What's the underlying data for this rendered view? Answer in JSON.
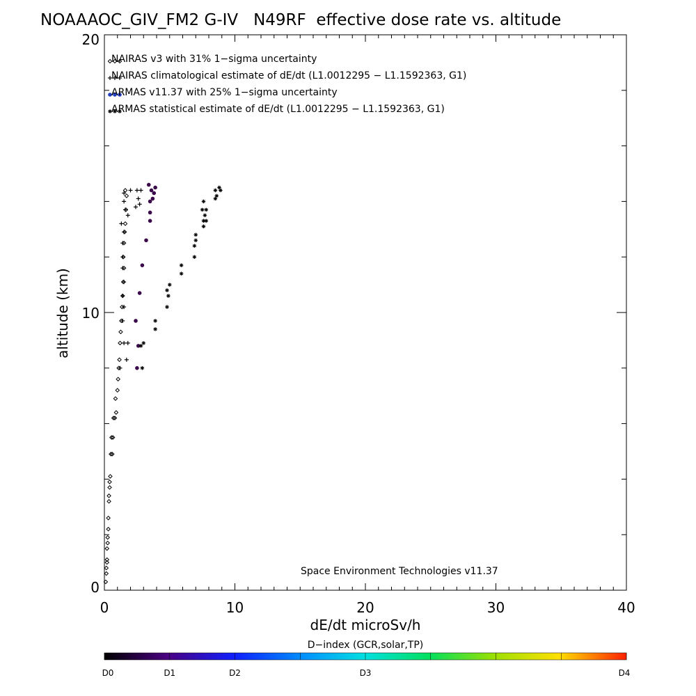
{
  "chart_data": {
    "type": "scatter",
    "title": "NOAAAOC_GIV_FM2 G-IV   N49RF  effective dose rate vs. altitude",
    "xlabel": "dE/dt microSv/h",
    "ylabel": "altitude (km)",
    "xlim": [
      0,
      40
    ],
    "ylim": [
      0,
      20
    ],
    "x_ticks": [
      "0",
      "10",
      "20",
      "30",
      "40"
    ],
    "y_ticks": [
      "0",
      "10",
      "20"
    ],
    "legend_placement": "top-left",
    "credit": "Space Environment Technologies v11.37",
    "colorbar": {
      "title": "D−index (GCR,solar,TP)",
      "labels": [
        "D0",
        "D1",
        "D2",
        "D3",
        "D4"
      ],
      "label_positions": [
        0,
        0.125,
        0.25,
        0.5,
        1.0
      ]
    },
    "series": [
      {
        "name": "NAIRAS v3 with 31% 1−sigma uncertainty",
        "marker": "diamond",
        "color": "#000000",
        "points": [
          [
            0.1,
            0.3
          ],
          [
            0.15,
            0.6
          ],
          [
            0.15,
            0.8
          ],
          [
            0.2,
            1.0
          ],
          [
            0.2,
            1.1
          ],
          [
            0.2,
            1.5
          ],
          [
            0.25,
            1.7
          ],
          [
            0.25,
            1.9
          ],
          [
            0.3,
            2.2
          ],
          [
            0.3,
            2.6
          ],
          [
            0.35,
            3.2
          ],
          [
            0.35,
            3.4
          ],
          [
            0.4,
            3.7
          ],
          [
            0.4,
            3.9
          ],
          [
            0.45,
            4.1
          ],
          [
            0.5,
            4.9
          ],
          [
            0.6,
            4.9
          ],
          [
            0.55,
            5.5
          ],
          [
            0.65,
            5.5
          ],
          [
            0.7,
            6.2
          ],
          [
            0.8,
            6.2
          ],
          [
            0.9,
            6.4
          ],
          [
            0.85,
            6.9
          ],
          [
            1.0,
            7.2
          ],
          [
            1.05,
            7.6
          ],
          [
            1.1,
            8.0
          ],
          [
            1.15,
            8.3
          ],
          [
            1.2,
            8.9
          ],
          [
            1.25,
            9.3
          ],
          [
            1.3,
            9.7
          ],
          [
            1.35,
            10.2
          ],
          [
            1.4,
            10.6
          ],
          [
            1.45,
            11.1
          ],
          [
            1.5,
            11.6
          ],
          [
            1.45,
            12.0
          ],
          [
            1.5,
            12.5
          ],
          [
            1.55,
            12.9
          ],
          [
            1.6,
            13.2
          ],
          [
            1.65,
            13.7
          ],
          [
            1.7,
            14.2
          ],
          [
            1.6,
            14.4
          ]
        ]
      },
      {
        "name": "NAIRAS climatological estimate of dE/dt (L1.0012295 − L1.1592363, G1)",
        "marker": "plus",
        "color": "#000000",
        "points": [
          [
            1.2,
            8.0
          ],
          [
            1.7,
            8.3
          ],
          [
            1.5,
            8.9
          ],
          [
            1.8,
            8.9
          ],
          [
            1.4,
            9.7
          ],
          [
            1.5,
            10.2
          ],
          [
            1.4,
            10.6
          ],
          [
            1.5,
            11.1
          ],
          [
            1.4,
            11.6
          ],
          [
            1.4,
            12.0
          ],
          [
            1.4,
            12.5
          ],
          [
            1.5,
            12.9
          ],
          [
            1.3,
            13.2
          ],
          [
            1.6,
            13.7
          ],
          [
            1.8,
            13.5
          ],
          [
            1.5,
            14.0
          ],
          [
            1.5,
            14.3
          ],
          [
            2.0,
            14.4
          ],
          [
            2.5,
            14.4
          ],
          [
            2.6,
            14.1
          ],
          [
            2.7,
            13.9
          ],
          [
            2.4,
            13.8
          ],
          [
            2.8,
            14.4
          ]
        ]
      },
      {
        "name": "ARMAS v11.37 with 25% 1−sigma uncertainty",
        "marker": "dot",
        "color": "#2040c0",
        "points": [
          [
            2.5,
            8.0
          ],
          [
            2.6,
            8.8
          ],
          [
            2.4,
            9.7
          ],
          [
            2.7,
            10.7
          ],
          [
            2.9,
            11.7
          ],
          [
            3.2,
            12.6
          ],
          [
            3.5,
            13.3
          ],
          [
            3.5,
            13.6
          ],
          [
            3.5,
            14.0
          ],
          [
            3.7,
            14.1
          ],
          [
            3.8,
            14.3
          ],
          [
            3.6,
            14.4
          ],
          [
            3.9,
            14.5
          ],
          [
            3.4,
            14.6
          ]
        ]
      },
      {
        "name": "ARMAS statistical estimate of dE/dt (L1.0012295 − L1.1592363, G1)",
        "marker": "asterisk",
        "color": "#000000",
        "points": [
          [
            2.9,
            8.0
          ],
          [
            2.8,
            8.8
          ],
          [
            3.0,
            8.9
          ],
          [
            3.9,
            9.4
          ],
          [
            3.9,
            9.7
          ],
          [
            4.8,
            10.2
          ],
          [
            4.9,
            10.6
          ],
          [
            4.8,
            10.8
          ],
          [
            5.0,
            11.0
          ],
          [
            5.9,
            11.4
          ],
          [
            5.9,
            11.7
          ],
          [
            6.9,
            12.0
          ],
          [
            6.9,
            12.4
          ],
          [
            7.0,
            12.6
          ],
          [
            7.0,
            12.8
          ],
          [
            7.6,
            13.1
          ],
          [
            7.6,
            13.3
          ],
          [
            7.8,
            13.3
          ],
          [
            7.7,
            13.5
          ],
          [
            7.5,
            13.7
          ],
          [
            7.8,
            13.7
          ],
          [
            7.6,
            14.0
          ],
          [
            8.5,
            14.1
          ],
          [
            8.6,
            14.2
          ],
          [
            8.5,
            14.4
          ],
          [
            8.9,
            14.4
          ],
          [
            8.8,
            14.5
          ]
        ]
      }
    ]
  }
}
